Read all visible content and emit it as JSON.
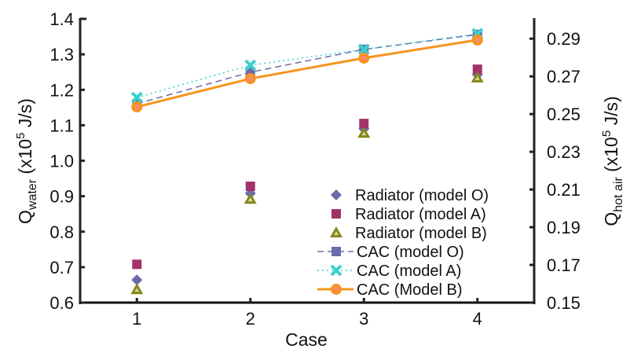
{
  "chart_data": {
    "type": "scatter",
    "title": "",
    "xlabel": "Case",
    "ylabel_left": {
      "main": "Q",
      "sub": "water",
      "rest": " (x10",
      "sup": "5",
      "unit": " J/s)"
    },
    "ylabel_right": {
      "main": "Q",
      "sub": "hot air",
      "rest": " (x10",
      "sup": "5",
      "unit": " J/s)"
    },
    "categories": [
      "1",
      "2",
      "3",
      "4"
    ],
    "x": [
      1,
      2,
      3,
      4
    ],
    "xlim": [
      0.5,
      4.5
    ],
    "ylim_left": [
      0.6,
      1.4
    ],
    "ylim_right": [
      0.15,
      0.3005
    ],
    "yticks_left": [
      "0.6",
      "0.7",
      "0.8",
      "0.9",
      "1.0",
      "1.1",
      "1.2",
      "1.3",
      "1.4"
    ],
    "yticks_right": [
      "0.15",
      "0.17",
      "0.19",
      "0.21",
      "0.23",
      "0.25",
      "0.27",
      "0.29"
    ],
    "legend_position": "bottom-right",
    "grid": false,
    "series": [
      {
        "name": "Radiator (model O)",
        "axis": "left",
        "marker": "diamond",
        "line": "none",
        "color": "#6b6ba8",
        "values": [
          0.664,
          0.908,
          1.09,
          1.243
        ]
      },
      {
        "name": "Radiator (model A)",
        "axis": "left",
        "marker": "square",
        "line": "none",
        "color": "#a2326a",
        "values": [
          0.708,
          0.928,
          1.105,
          1.258
        ]
      },
      {
        "name": "Radiator (model B)",
        "axis": "left",
        "marker": "triangle",
        "line": "none",
        "color": "#86861a",
        "values": [
          0.637,
          0.892,
          1.078,
          1.234
        ]
      },
      {
        "name": "CAC (model O)",
        "axis": "right",
        "marker": "square",
        "line": "dashed",
        "color": "#6b6ba8",
        "values": [
          0.2555,
          0.2722,
          0.2843,
          0.2922
        ]
      },
      {
        "name": "CAC (model A)",
        "axis": "right",
        "marker": "x",
        "line": "dotted",
        "color": "#3ccfcf",
        "values": [
          0.2588,
          0.2759,
          0.2843,
          0.2926
        ]
      },
      {
        "name": "CAC (Model B)",
        "axis": "right",
        "marker": "circle",
        "line": "solid",
        "color": "#f7941d",
        "values": [
          0.2538,
          0.2688,
          0.2797,
          0.2893
        ]
      }
    ]
  }
}
